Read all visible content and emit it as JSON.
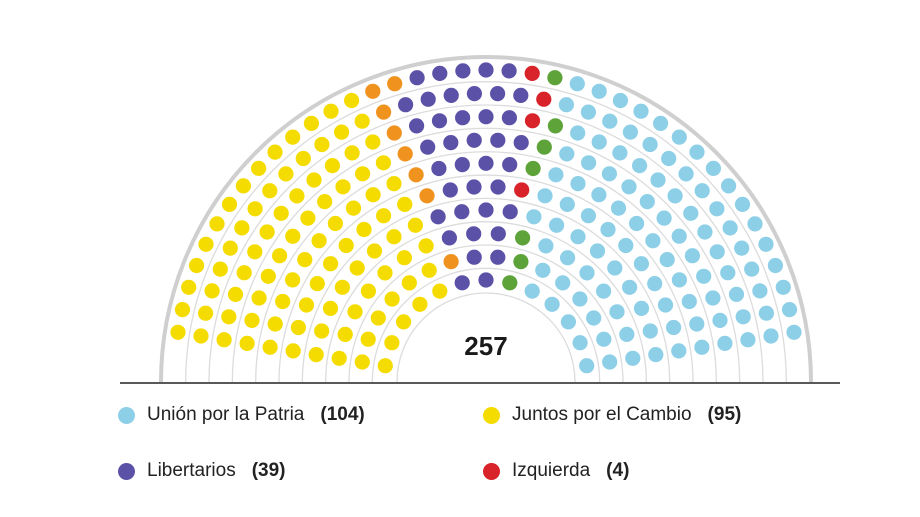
{
  "chart_data": {
    "type": "parliament",
    "total": 257,
    "series": [
      {
        "name": "Unión por la Patria",
        "value": 104,
        "color": "#8ecfe8"
      },
      {
        "name": "Juntos por el Cambio",
        "value": 95,
        "color": "#f5dc00"
      },
      {
        "name": "Libertarios",
        "value": 39,
        "color": "#5b52a8"
      },
      {
        "name": "Izquierda",
        "value": 4,
        "color": "#d8232a"
      },
      {
        "value": 8,
        "color": "#f0921e"
      },
      {
        "value": 7,
        "color": "#5ea33a"
      }
    ],
    "legend": [
      {
        "name": "Unión por la Patria",
        "count": "(104)",
        "color": "#8ecfe8"
      },
      {
        "name": "Juntos por el Cambio",
        "count": "(95)",
        "color": "#f5dc00"
      },
      {
        "name": "Libertarios",
        "count": "(39)",
        "color": "#5b52a8"
      },
      {
        "name": "Izquierda",
        "count": "(4)",
        "color": "#d8232a"
      }
    ],
    "total_label": "257"
  }
}
